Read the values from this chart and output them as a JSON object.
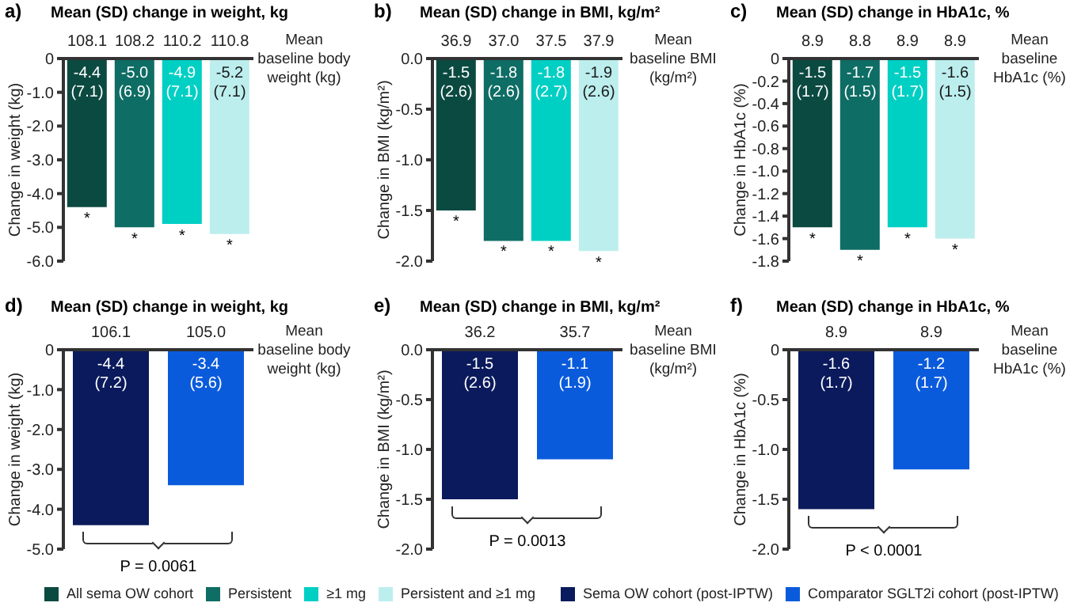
{
  "chart_data": [
    {
      "type": "bar",
      "title": "Mean (SD) change in weight, kg",
      "xlabel": "Mean baseline body weight (kg)",
      "ylabel": "Change in weight (kg)",
      "categories": [
        "108.1",
        "108.2",
        "110.2",
        "110.8"
      ],
      "series": [
        {
          "name": "All sema OW cohort",
          "color": "#0b4a40",
          "values": [
            -4.4,
            null,
            null,
            null
          ],
          "value_labels": [
            "-4.4 (7.1)",
            null,
            null,
            null
          ]
        },
        {
          "name": "Persistent",
          "color": "#0e6d64",
          "values": [
            null,
            -5.0,
            null,
            null
          ],
          "value_labels": [
            null,
            "-5.0 (6.9)",
            null,
            null
          ]
        },
        {
          "name": "≥1 mg",
          "color": "#00cfc4",
          "values": [
            null,
            null,
            -4.9,
            null
          ],
          "value_labels": [
            null,
            null,
            "-4.9 (7.1)",
            null
          ]
        },
        {
          "name": "Persistent and ≥1 mg",
          "color": "#bdeeee",
          "values": [
            null,
            null,
            null,
            -5.2
          ],
          "value_labels": [
            null,
            null,
            null,
            "-5.2 (7.1)"
          ]
        }
      ],
      "ylim": [
        -6,
        0
      ],
      "yticks": [
        0,
        {
          "value": -1,
          "label": "-1.0"
        },
        {
          "value": -2,
          "label": "-2.0"
        },
        {
          "value": -3,
          "label": "-3.0"
        },
        {
          "value": -4,
          "label": "-4.0"
        },
        {
          "value": -5,
          "label": "-5.0"
        },
        {
          "value": -6,
          "label": "-6.0"
        }
      ],
      "legend": "bottom",
      "grid": false,
      "annotations": [
        "a)",
        {
          "text": "*",
          "x": "108.1",
          "y": -4.4
        },
        {
          "text": "*",
          "x": "108.2",
          "y": -5.0
        },
        {
          "text": "*",
          "x": "110.2",
          "y": -4.9
        },
        {
          "text": "*",
          "x": "110.8",
          "y": -5.2
        }
      ]
    },
    {
      "type": "bar",
      "title": "Mean (SD) change in BMI, kg/m²",
      "xlabel": "Mean baseline BMI (kg/m²)",
      "ylabel": "Change in BMI (kg/m²)",
      "categories": [
        "36.9",
        "37.0",
        "37.5",
        "37.9"
      ],
      "series": [
        {
          "color": "#0b4a40",
          "values": [
            -1.5,
            null,
            null,
            null
          ],
          "value_labels": [
            "-1.5 (2.6)",
            null,
            null,
            null
          ]
        },
        {
          "color": "#0e6d64",
          "values": [
            null,
            -1.8,
            null,
            null
          ],
          "value_labels": [
            null,
            "-1.8 (2.6)",
            null,
            null
          ]
        },
        {
          "color": "#00cfc4",
          "values": [
            null,
            null,
            -1.8,
            null
          ],
          "value_labels": [
            null,
            null,
            "-1.8 (2.7)",
            null
          ]
        },
        {
          "color": "#bdeeee",
          "values": [
            null,
            null,
            null,
            -1.9
          ],
          "value_labels": [
            null,
            null,
            null,
            "-1.9 (2.6)"
          ]
        }
      ],
      "ylim": [
        -2,
        0
      ],
      "yticks": [
        {
          "value": 0,
          "label": "0.0"
        },
        -0.5,
        {
          "value": -1,
          "label": "-1.0"
        },
        -1.5,
        {
          "value": -2,
          "label": "-2.0"
        }
      ],
      "grid": false,
      "annotations": [
        "b)",
        {
          "text": "*",
          "x": "36.9",
          "y": -1.5
        },
        {
          "text": "*",
          "x": "37.0",
          "y": -1.8
        },
        {
          "text": "*",
          "x": "37.5",
          "y": -1.8
        },
        {
          "text": "*",
          "x": "37.9",
          "y": -1.9
        }
      ]
    },
    {
      "type": "bar",
      "title": "Mean (SD) change in HbA1c, %",
      "xlabel": "Mean baseline HbA1c (%)",
      "ylabel": "Change in HbA1c (%)",
      "categories": [
        "8.9",
        "8.8",
        "8.9",
        "8.9"
      ],
      "series": [
        {
          "color": "#0b4a40",
          "values": [
            -1.5,
            null,
            null,
            null
          ],
          "value_labels": [
            "-1.5 (1.7)",
            null,
            null,
            null
          ]
        },
        {
          "color": "#0e6d64",
          "values": [
            null,
            -1.7,
            null,
            null
          ],
          "value_labels": [
            null,
            "-1.7 (1.5)",
            null,
            null
          ]
        },
        {
          "color": "#00cfc4",
          "values": [
            null,
            null,
            -1.5,
            null
          ],
          "value_labels": [
            null,
            null,
            "-1.5 (1.7)",
            null
          ]
        },
        {
          "color": "#bdeeee",
          "values": [
            null,
            null,
            null,
            -1.6
          ],
          "value_labels": [
            null,
            null,
            null,
            "-1.6 (1.5)"
          ]
        }
      ],
      "ylim": [
        -1.8,
        0
      ],
      "yticks": [
        0,
        -0.2,
        -0.4,
        -0.6,
        -0.8,
        {
          "value": -1,
          "label": "-1.0"
        },
        -1.2,
        -1.4,
        -1.6,
        -1.8
      ],
      "grid": false,
      "annotations": [
        "c)",
        "*",
        "*",
        "*",
        "*"
      ]
    },
    {
      "type": "bar",
      "title": "Mean (SD) change in weight, kg",
      "xlabel": "Mean baseline body weight (kg)",
      "ylabel": "Change in weight (kg)",
      "categories": [
        "106.1",
        "105.0"
      ],
      "series": [
        {
          "name": "Sema OW cohort (post-IPTW)",
          "color": "#0a1a5c",
          "values": [
            -4.4,
            null
          ],
          "value_labels": [
            "-4.4 (7.2)",
            null
          ]
        },
        {
          "name": "Comparator SGLT2i cohort (post-IPTW)",
          "color": "#0a5bdc",
          "values": [
            null,
            -3.4
          ],
          "value_labels": [
            null,
            "-3.4 (5.6)"
          ]
        }
      ],
      "ylim": [
        -5,
        0
      ],
      "yticks": [
        0,
        {
          "value": -1,
          "label": "-1.0"
        },
        {
          "value": -2,
          "label": "-2.0"
        },
        {
          "value": -3,
          "label": "-3.0"
        },
        {
          "value": -4,
          "label": "-4.0"
        },
        {
          "value": -5,
          "label": "-5.0"
        }
      ],
      "legend": "bottom",
      "grid": false,
      "annotations": [
        "d)",
        "P = 0.0061"
      ]
    },
    {
      "type": "bar",
      "title": "Mean (SD) change in BMI, kg/m²",
      "xlabel": "Mean baseline BMI (kg/m²)",
      "ylabel": "Change in BMI (kg/m²)",
      "categories": [
        "36.2",
        "35.7"
      ],
      "series": [
        {
          "color": "#0a1a5c",
          "values": [
            -1.5,
            null
          ],
          "value_labels": [
            "-1.5 (2.6)",
            null
          ]
        },
        {
          "color": "#0a5bdc",
          "values": [
            null,
            -1.1
          ],
          "value_labels": [
            null,
            "-1.1 (1.9)"
          ]
        }
      ],
      "ylim": [
        -2,
        0
      ],
      "yticks": [
        {
          "value": 0,
          "label": "0.0"
        },
        -0.5,
        {
          "value": -1,
          "label": "-1.0"
        },
        -1.5,
        {
          "value": -2,
          "label": "-2.0"
        }
      ],
      "grid": false,
      "annotations": [
        "e)",
        "P = 0.0013"
      ]
    },
    {
      "type": "bar",
      "title": "Mean (SD) change in HbA1c, %",
      "xlabel": "Mean baseline HbA1c (%)",
      "ylabel": "Change in HbA1c (%)",
      "categories": [
        "8.9",
        "8.9"
      ],
      "series": [
        {
          "color": "#0a1a5c",
          "values": [
            -1.6,
            null
          ],
          "value_labels": [
            "-1.6 (1.7)",
            null
          ]
        },
        {
          "color": "#0a5bdc",
          "values": [
            null,
            -1.2
          ],
          "value_labels": [
            null,
            "-1.2 (1.7)"
          ]
        }
      ],
      "ylim": [
        -2,
        0
      ],
      "yticks": [
        0,
        -0.5,
        {
          "value": -1,
          "label": "-1.0"
        },
        -1.5,
        {
          "value": -2,
          "label": "-2.0"
        }
      ],
      "grid": false,
      "annotations": [
        "f)",
        "P < 0.0001"
      ]
    }
  ]
}
